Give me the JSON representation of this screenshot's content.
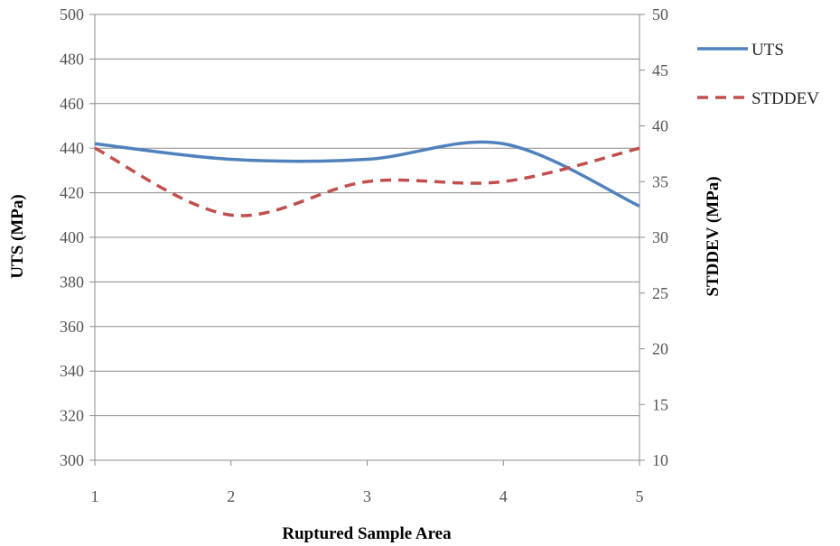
{
  "chart_data": {
    "type": "line",
    "title": "",
    "xlabel": "Ruptured Sample Area",
    "ylabel": "UTS (MPa)",
    "y2label": "STDDEV (MPa)",
    "x": [
      1,
      2,
      3,
      4,
      5
    ],
    "xlim": [
      1,
      5
    ],
    "ylim": [
      300,
      500
    ],
    "y2lim": [
      10,
      50
    ],
    "yticks": [
      300,
      320,
      340,
      360,
      380,
      400,
      420,
      440,
      460,
      480,
      500
    ],
    "y2ticks": [
      10,
      15,
      20,
      25,
      30,
      35,
      40,
      45,
      50
    ],
    "grid": "horizontal",
    "legend_position": "right",
    "series": [
      {
        "name": "UTS",
        "axis": "left",
        "values": [
          442,
          435,
          435,
          442,
          414
        ],
        "color": "#4f81bd",
        "style": "solid"
      },
      {
        "name": "STDDEV",
        "axis": "right",
        "values": [
          38,
          32,
          35,
          35,
          38
        ],
        "color": "#c0504d",
        "style": "dashed"
      }
    ]
  }
}
